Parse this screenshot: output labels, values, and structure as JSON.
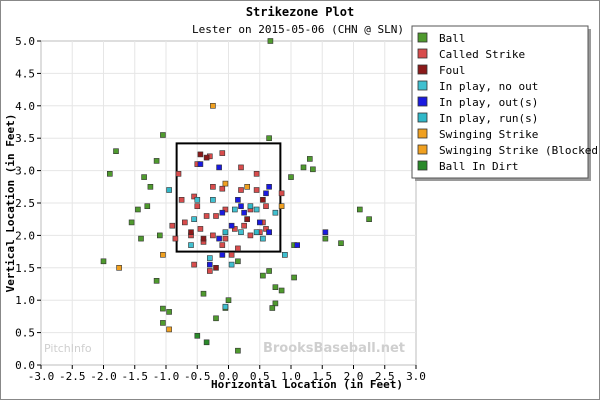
{
  "watermarks": {
    "left": "PitchInfo",
    "right": "BrooksBaseball.net"
  },
  "chart_data": {
    "type": "scatter",
    "title": "Strikezone Plot",
    "subtitle": "Lester on 2015-05-06 (CHN @ SLN)",
    "xlabel": "Horizontal Location (in Feet)",
    "ylabel": "Vertical Location (in Feet)",
    "xlim": [
      -3.0,
      3.0
    ],
    "ylim": [
      0.0,
      5.0
    ],
    "xticks": [
      "-3.0",
      "-2.5",
      "-2.0",
      "-1.5",
      "-1.0",
      "-0.5",
      "0.0",
      "0.5",
      "1.0",
      "1.5",
      "2.0",
      "2.5",
      "3.0"
    ],
    "yticks": [
      "0.0",
      "0.5",
      "1.0",
      "1.5",
      "2.0",
      "2.5",
      "3.0",
      "3.5",
      "4.0",
      "4.5",
      "5.0"
    ],
    "strike_zone": {
      "x": [
        -0.83,
        0.83
      ],
      "y": [
        1.75,
        3.42
      ]
    },
    "legend_position": "top-right",
    "series": [
      {
        "name": "Ball",
        "color": "#4f9a2e",
        "points": [
          [
            0.67,
            5.0
          ],
          [
            -1.05,
            3.55
          ],
          [
            0.65,
            3.5
          ],
          [
            -1.8,
            3.3
          ],
          [
            -1.15,
            3.15
          ],
          [
            1.3,
            3.18
          ],
          [
            1.2,
            3.05
          ],
          [
            1.35,
            3.02
          ],
          [
            -1.9,
            2.95
          ],
          [
            1.0,
            2.9
          ],
          [
            -1.35,
            2.9
          ],
          [
            -1.25,
            2.75
          ],
          [
            -1.45,
            2.4
          ],
          [
            -1.3,
            2.45
          ],
          [
            2.1,
            2.4
          ],
          [
            -1.55,
            2.2
          ],
          [
            2.25,
            2.25
          ],
          [
            -1.1,
            2.0
          ],
          [
            1.55,
            1.95
          ],
          [
            1.8,
            1.88
          ],
          [
            -1.4,
            1.95
          ],
          [
            1.05,
            1.85
          ],
          [
            -2.0,
            1.6
          ],
          [
            0.9,
            1.7
          ],
          [
            0.15,
            1.6
          ],
          [
            0.65,
            1.45
          ],
          [
            0.55,
            1.38
          ],
          [
            1.05,
            1.35
          ],
          [
            -1.15,
            1.3
          ],
          [
            0.75,
            1.2
          ],
          [
            0.85,
            1.15
          ],
          [
            -0.4,
            1.1
          ],
          [
            0.0,
            1.0
          ],
          [
            -0.05,
            0.88
          ],
          [
            -1.05,
            0.87
          ],
          [
            0.75,
            0.95
          ],
          [
            0.7,
            0.88
          ],
          [
            -0.95,
            0.82
          ],
          [
            -1.05,
            0.65
          ],
          [
            -0.2,
            0.72
          ],
          [
            0.15,
            0.22
          ]
        ]
      },
      {
        "name": "Called Strike",
        "color": "#d84c4c",
        "points": [
          [
            -0.3,
            3.22
          ],
          [
            -0.1,
            3.27
          ],
          [
            0.2,
            3.05
          ],
          [
            -0.5,
            3.1
          ],
          [
            -0.8,
            2.95
          ],
          [
            0.45,
            2.95
          ],
          [
            -0.25,
            2.75
          ],
          [
            -0.1,
            2.72
          ],
          [
            0.2,
            2.7
          ],
          [
            0.45,
            2.7
          ],
          [
            0.85,
            2.65
          ],
          [
            -0.55,
            2.6
          ],
          [
            -0.75,
            2.55
          ],
          [
            -0.5,
            2.45
          ],
          [
            -0.05,
            2.4
          ],
          [
            0.35,
            2.4
          ],
          [
            0.6,
            2.45
          ],
          [
            -0.35,
            2.3
          ],
          [
            -0.2,
            2.3
          ],
          [
            0.3,
            2.25
          ],
          [
            0.55,
            2.2
          ],
          [
            -0.7,
            2.2
          ],
          [
            -0.9,
            2.15
          ],
          [
            -0.45,
            2.1
          ],
          [
            0.1,
            2.1
          ],
          [
            0.25,
            2.15
          ],
          [
            0.5,
            2.05
          ],
          [
            -0.6,
            2.0
          ],
          [
            -0.25,
            2.0
          ],
          [
            -0.05,
            1.95
          ],
          [
            0.35,
            2.0
          ],
          [
            0.6,
            2.1
          ],
          [
            -0.85,
            1.95
          ],
          [
            -0.4,
            1.9
          ],
          [
            -0.1,
            1.85
          ],
          [
            0.15,
            1.8
          ],
          [
            0.05,
            1.7
          ],
          [
            -0.55,
            1.55
          ],
          [
            -0.3,
            1.45
          ]
        ]
      },
      {
        "name": "Foul",
        "color": "#8b1a1a",
        "points": [
          [
            -0.45,
            3.25
          ],
          [
            -0.35,
            3.2
          ],
          [
            0.55,
            2.55
          ],
          [
            0.3,
            2.25
          ],
          [
            -0.6,
            2.05
          ],
          [
            -0.4,
            1.95
          ],
          [
            0.65,
            2.05
          ],
          [
            -0.1,
            1.7
          ],
          [
            -0.2,
            1.5
          ]
        ]
      },
      {
        "name": "In play, no out",
        "color": "#40c0d0",
        "points": [
          [
            -0.5,
            2.55
          ],
          [
            -0.25,
            2.55
          ],
          [
            0.45,
            2.4
          ],
          [
            0.1,
            2.4
          ],
          [
            0.75,
            2.35
          ],
          [
            -0.55,
            2.25
          ],
          [
            0.2,
            2.05
          ],
          [
            0.55,
            1.95
          ],
          [
            -0.6,
            1.85
          ],
          [
            0.9,
            1.7
          ],
          [
            -0.3,
            1.65
          ],
          [
            0.05,
            1.55
          ],
          [
            -0.05,
            0.9
          ]
        ]
      },
      {
        "name": "In play, out(s)",
        "color": "#1a1ae0",
        "points": [
          [
            -0.45,
            3.1
          ],
          [
            -0.15,
            3.05
          ],
          [
            0.65,
            2.75
          ],
          [
            0.6,
            2.65
          ],
          [
            0.15,
            2.55
          ],
          [
            0.2,
            2.45
          ],
          [
            0.25,
            2.35
          ],
          [
            -0.1,
            2.35
          ],
          [
            0.5,
            2.2
          ],
          [
            0.65,
            2.05
          ],
          [
            0.05,
            2.15
          ],
          [
            -0.15,
            1.95
          ],
          [
            1.1,
            1.85
          ],
          [
            1.55,
            2.05
          ],
          [
            -0.1,
            1.7
          ],
          [
            -0.3,
            1.55
          ]
        ]
      },
      {
        "name": "In play, run(s)",
        "color": "#30b8c8",
        "points": [
          [
            -0.95,
            2.7
          ],
          [
            0.35,
            2.45
          ],
          [
            -0.05,
            2.05
          ],
          [
            0.45,
            2.05
          ]
        ]
      },
      {
        "name": "Swinging Strike",
        "color": "#f0a020",
        "points": [
          [
            -0.25,
            4.0
          ],
          [
            0.3,
            2.75
          ],
          [
            -0.05,
            2.8
          ],
          [
            0.85,
            2.45
          ],
          [
            -1.75,
            1.5
          ]
        ]
      },
      {
        "name": "Swinging Strike (Blocked)",
        "color": "#f0a020",
        "points": [
          [
            -0.95,
            0.55
          ],
          [
            -1.05,
            1.7
          ]
        ]
      },
      {
        "name": "Ball In Dirt",
        "color": "#2a8a2a",
        "points": [
          [
            -0.5,
            0.45
          ],
          [
            -0.35,
            0.35
          ]
        ]
      }
    ]
  }
}
